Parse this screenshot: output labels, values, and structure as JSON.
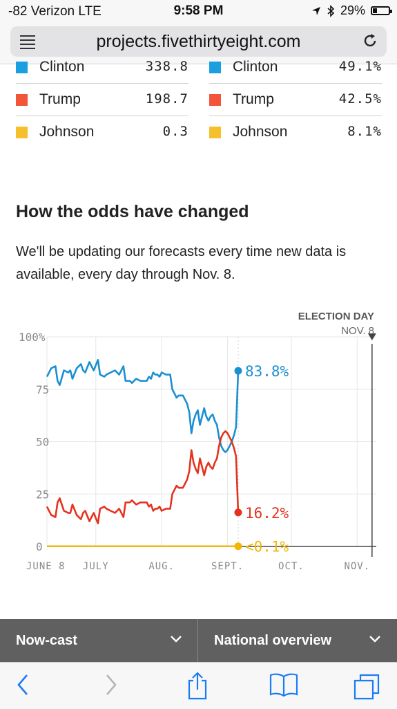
{
  "status": {
    "carrier": "-82 Verizon  LTE",
    "time": "9:58 PM",
    "battery": "29%",
    "battery_level": 0.29
  },
  "browser": {
    "url": "projects.fivethirtyeight.com"
  },
  "legend_left": [
    {
      "name": "Clinton",
      "value": "338.8",
      "color": "#1aa0e0"
    },
    {
      "name": "Trump",
      "value": "198.7",
      "color": "#f2553a"
    },
    {
      "name": "Johnson",
      "value": "0.3",
      "color": "#f5c02c"
    }
  ],
  "legend_right": [
    {
      "name": "Clinton",
      "value": "49.1%",
      "color": "#1aa0e0"
    },
    {
      "name": "Trump",
      "value": "42.5%",
      "color": "#f2553a"
    },
    {
      "name": "Johnson",
      "value": "8.1%",
      "color": "#f5c02c"
    }
  ],
  "section": {
    "heading": "How the odds have changed",
    "paragraph": "We'll be updating our forecasts every time new data is available, every day through Nov. 8."
  },
  "chart_data": {
    "type": "line",
    "election_label": "ELECTION DAY",
    "election_date": "NOV. 8",
    "yticks": [
      "100%",
      "75",
      "50",
      "25",
      "0"
    ],
    "ylim": [
      0,
      100
    ],
    "xticks": [
      "JUNE 8",
      "JULY",
      "AUG.",
      "SEPT.",
      "OCT.",
      "NOV."
    ],
    "xlim": [
      "2016-06-08",
      "2016-11-10"
    ],
    "series": [
      {
        "name": "Clinton",
        "color": "#1a8fd1",
        "final_label": "83.8%",
        "values": [
          [
            0,
            81
          ],
          [
            2,
            85
          ],
          [
            4,
            86
          ],
          [
            5,
            79
          ],
          [
            6,
            77
          ],
          [
            8,
            84
          ],
          [
            10,
            83
          ],
          [
            11,
            84
          ],
          [
            12,
            80
          ],
          [
            14,
            85
          ],
          [
            16,
            87
          ],
          [
            17,
            84
          ],
          [
            18,
            83
          ],
          [
            20,
            88
          ],
          [
            21,
            86
          ],
          [
            22,
            84
          ],
          [
            24,
            89
          ],
          [
            25,
            82
          ],
          [
            27,
            81
          ],
          [
            28,
            82
          ],
          [
            30,
            83
          ],
          [
            32,
            84
          ],
          [
            34,
            82
          ],
          [
            36,
            86
          ],
          [
            37,
            79
          ],
          [
            39,
            79
          ],
          [
            40,
            78
          ],
          [
            42,
            80
          ],
          [
            44,
            79
          ],
          [
            45,
            79
          ],
          [
            47,
            79
          ],
          [
            48,
            81
          ],
          [
            49,
            80
          ],
          [
            50,
            83
          ],
          [
            51,
            82
          ],
          [
            52,
            82
          ],
          [
            53,
            81
          ],
          [
            54,
            83
          ],
          [
            56,
            82
          ],
          [
            58,
            82
          ],
          [
            59,
            75
          ],
          [
            60,
            73
          ],
          [
            61,
            71
          ],
          [
            62,
            72
          ],
          [
            63,
            72
          ],
          [
            64,
            72
          ],
          [
            65,
            70
          ],
          [
            66,
            68
          ],
          [
            67,
            64
          ],
          [
            68,
            54
          ],
          [
            69,
            60
          ],
          [
            70,
            63
          ],
          [
            71,
            65
          ],
          [
            72,
            58
          ],
          [
            73,
            62
          ],
          [
            74,
            66
          ],
          [
            75,
            62
          ],
          [
            76,
            60
          ],
          [
            77,
            62
          ],
          [
            78,
            63
          ],
          [
            79,
            60
          ],
          [
            80,
            58
          ],
          [
            81,
            52
          ],
          [
            82,
            48
          ],
          [
            83,
            46
          ],
          [
            84,
            45
          ],
          [
            85,
            46
          ],
          [
            86,
            48
          ],
          [
            87,
            50
          ],
          [
            88,
            53
          ],
          [
            89,
            57
          ],
          [
            90,
            83.8
          ]
        ]
      },
      {
        "name": "Trump",
        "color": "#e5321e",
        "final_label": "16.2%",
        "values": [
          [
            0,
            19
          ],
          [
            2,
            15
          ],
          [
            4,
            14
          ],
          [
            5,
            21
          ],
          [
            6,
            23
          ],
          [
            8,
            17
          ],
          [
            10,
            16
          ],
          [
            11,
            16
          ],
          [
            12,
            20
          ],
          [
            14,
            15
          ],
          [
            16,
            13
          ],
          [
            17,
            16
          ],
          [
            18,
            17
          ],
          [
            20,
            12
          ],
          [
            21,
            14
          ],
          [
            22,
            16
          ],
          [
            24,
            11
          ],
          [
            25,
            18
          ],
          [
            27,
            19
          ],
          [
            28,
            18
          ],
          [
            30,
            17
          ],
          [
            32,
            16
          ],
          [
            34,
            18
          ],
          [
            36,
            14
          ],
          [
            37,
            21
          ],
          [
            39,
            21
          ],
          [
            40,
            22
          ],
          [
            42,
            20
          ],
          [
            44,
            21
          ],
          [
            45,
            21
          ],
          [
            47,
            21
          ],
          [
            48,
            19
          ],
          [
            49,
            20
          ],
          [
            50,
            17
          ],
          [
            51,
            18
          ],
          [
            52,
            18
          ],
          [
            53,
            19
          ],
          [
            54,
            17
          ],
          [
            56,
            18
          ],
          [
            58,
            18
          ],
          [
            59,
            25
          ],
          [
            60,
            27
          ],
          [
            61,
            29
          ],
          [
            62,
            28
          ],
          [
            63,
            28
          ],
          [
            64,
            28
          ],
          [
            65,
            30
          ],
          [
            66,
            32
          ],
          [
            67,
            36
          ],
          [
            68,
            46
          ],
          [
            69,
            40
          ],
          [
            70,
            37
          ],
          [
            71,
            35
          ],
          [
            72,
            42
          ],
          [
            73,
            38
          ],
          [
            74,
            34
          ],
          [
            75,
            38
          ],
          [
            76,
            40
          ],
          [
            77,
            38
          ],
          [
            78,
            37
          ],
          [
            79,
            40
          ],
          [
            80,
            42
          ],
          [
            81,
            48
          ],
          [
            82,
            52
          ],
          [
            83,
            54
          ],
          [
            84,
            55
          ],
          [
            85,
            54
          ],
          [
            86,
            52
          ],
          [
            87,
            50
          ],
          [
            88,
            47
          ],
          [
            89,
            43
          ],
          [
            90,
            16.2
          ]
        ]
      },
      {
        "name": "Johnson",
        "color": "#f2b705",
        "final_label": "<0.1%",
        "values": [
          [
            0,
            0.1
          ],
          [
            90,
            0.1
          ]
        ]
      }
    ]
  },
  "tabs": [
    {
      "label": "Now-cast"
    },
    {
      "label": "National overview"
    }
  ]
}
